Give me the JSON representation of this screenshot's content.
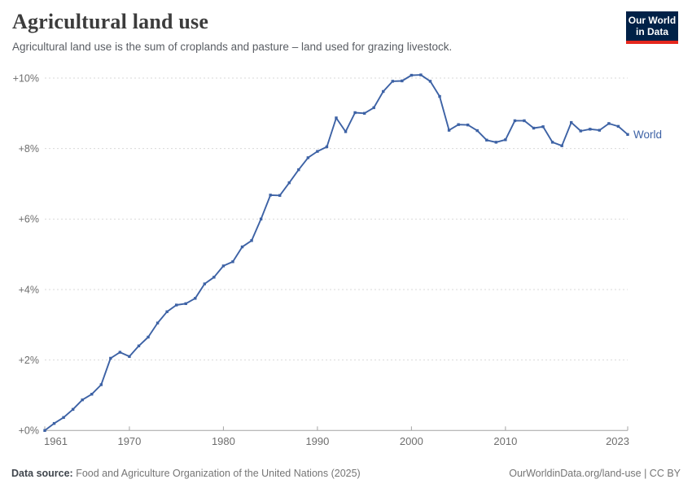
{
  "header": {
    "title": "Agricultural land use",
    "subtitle": "Agricultural land use is the sum of croplands and pasture – land used for grazing livestock.",
    "logo": {
      "line1": "Our World",
      "line2": "in Data"
    }
  },
  "colors": {
    "series_blue": "#3d62a5",
    "logo_navy": "#002147",
    "logo_red": "#e5271d",
    "gridline": "#d9d9d9",
    "axis": "#a3a3a3",
    "tick_label": "#6e6e6e"
  },
  "chart_data": {
    "type": "line",
    "title": "Agricultural land use",
    "xlabel": "",
    "ylabel": "",
    "ylim": [
      0,
      10
    ],
    "grid": "horizontal-dashed",
    "legend_position": "end-of-line-label",
    "x": [
      1961,
      1962,
      1963,
      1964,
      1965,
      1966,
      1967,
      1968,
      1969,
      1970,
      1971,
      1972,
      1973,
      1974,
      1975,
      1976,
      1977,
      1978,
      1979,
      1980,
      1981,
      1982,
      1983,
      1984,
      1985,
      1986,
      1987,
      1988,
      1989,
      1990,
      1991,
      1992,
      1993,
      1994,
      1995,
      1996,
      1997,
      1998,
      1999,
      2000,
      2001,
      2002,
      2003,
      2004,
      2005,
      2006,
      2007,
      2008,
      2009,
      2010,
      2011,
      2012,
      2013,
      2014,
      2015,
      2016,
      2017,
      2018,
      2019,
      2020,
      2021,
      2022,
      2023
    ],
    "series": [
      {
        "name": "World",
        "color": "#3d62a5",
        "values": [
          0.0,
          0.2,
          0.37,
          0.6,
          0.87,
          1.03,
          1.3,
          2.05,
          2.22,
          2.1,
          2.4,
          2.65,
          3.05,
          3.37,
          3.56,
          3.6,
          3.75,
          4.16,
          4.35,
          4.67,
          4.79,
          5.21,
          5.39,
          6.0,
          6.68,
          6.67,
          7.03,
          7.4,
          7.74,
          7.92,
          8.05,
          8.87,
          8.48,
          9.02,
          9.0,
          9.16,
          9.62,
          9.91,
          9.92,
          10.08,
          10.09,
          9.91,
          9.48,
          8.52,
          8.68,
          8.67,
          8.51,
          8.24,
          8.18,
          8.25,
          8.79,
          8.79,
          8.58,
          8.62,
          8.18,
          8.08,
          8.74,
          8.5,
          8.55,
          8.52,
          8.71,
          8.63,
          8.4
        ]
      }
    ],
    "y_ticks": [
      {
        "value": 0,
        "label": "+0%"
      },
      {
        "value": 2,
        "label": "+2%"
      },
      {
        "value": 4,
        "label": "+4%"
      },
      {
        "value": 6,
        "label": "+6%"
      },
      {
        "value": 8,
        "label": "+8%"
      },
      {
        "value": 10,
        "label": "+10%"
      }
    ],
    "x_ticks": [
      {
        "year": 1961,
        "label": "1961"
      },
      {
        "year": 1970,
        "label": "1970"
      },
      {
        "year": 1980,
        "label": "1980"
      },
      {
        "year": 1990,
        "label": "1990"
      },
      {
        "year": 2000,
        "label": "2000"
      },
      {
        "year": 2010,
        "label": "2010"
      },
      {
        "year": 2023,
        "label": "2023"
      }
    ]
  },
  "footer": {
    "datasource_label": "Data source:",
    "datasource_text": " Food and Agriculture Organization of the United Nations (2025)",
    "credit": "OurWorldinData.org/land-use | CC BY"
  }
}
